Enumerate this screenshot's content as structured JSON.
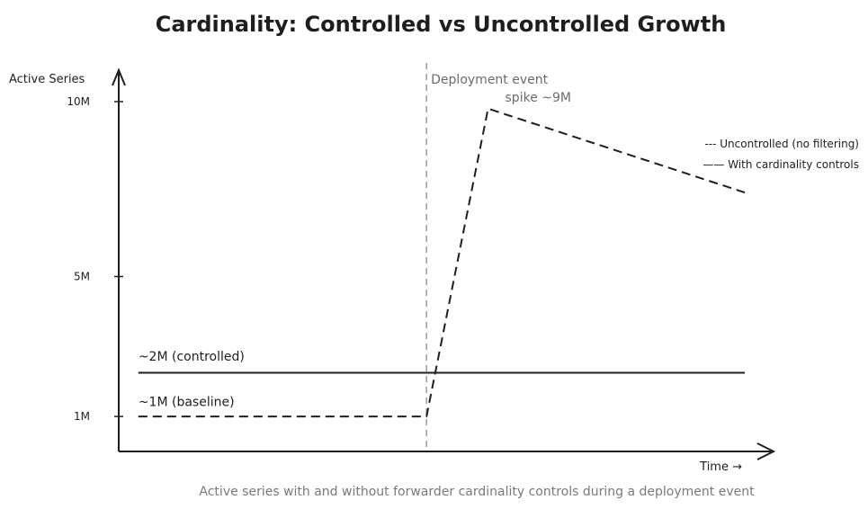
{
  "chart_data": {
    "type": "line",
    "title": "Cardinality: Controlled vs Uncontrolled Growth",
    "ylabel": "Active Series",
    "xlabel": "Time →",
    "caption": "Active series with and without forwarder cardinality controls during a deployment event",
    "ylim": [
      0,
      10.9
    ],
    "xlim": [
      0,
      100
    ],
    "y_ticks": [
      {
        "value": 1,
        "label": "1M"
      },
      {
        "value": 5,
        "label": "5M"
      },
      {
        "value": 10,
        "label": "10M"
      }
    ],
    "grid": false,
    "legend": {
      "position": "top-right",
      "entries": [
        {
          "label": "--- Uncontrolled (no filtering)"
        },
        {
          "label": "—— With cardinality controls"
        }
      ]
    },
    "series": [
      {
        "id": "uncontrolled",
        "style": "dashed",
        "x": [
          3,
          47,
          56.4,
          95.6
        ],
        "y": [
          1.0,
          1.0,
          9.8,
          7.4
        ]
      },
      {
        "id": "controlled",
        "style": "solid",
        "x": [
          3,
          95.6
        ],
        "y": [
          2.25,
          2.25
        ]
      }
    ],
    "event": {
      "x": 47,
      "label": "Deployment event"
    },
    "annotations": [
      {
        "id": "spike",
        "text": "spike ~9M",
        "x": 59,
        "y": 10.0,
        "tone": "gray"
      },
      {
        "id": "controlled-level",
        "text": "~2M  (controlled)",
        "x": 3,
        "y": 2.6,
        "tone": "dark"
      },
      {
        "id": "baseline-level",
        "text": "~1M  (baseline)",
        "x": 3,
        "y": 1.3,
        "tone": "dark"
      }
    ],
    "colors": {
      "line": "#1e1e1e",
      "event": "#9a9a9a",
      "muted": "#6b6b6b"
    }
  }
}
